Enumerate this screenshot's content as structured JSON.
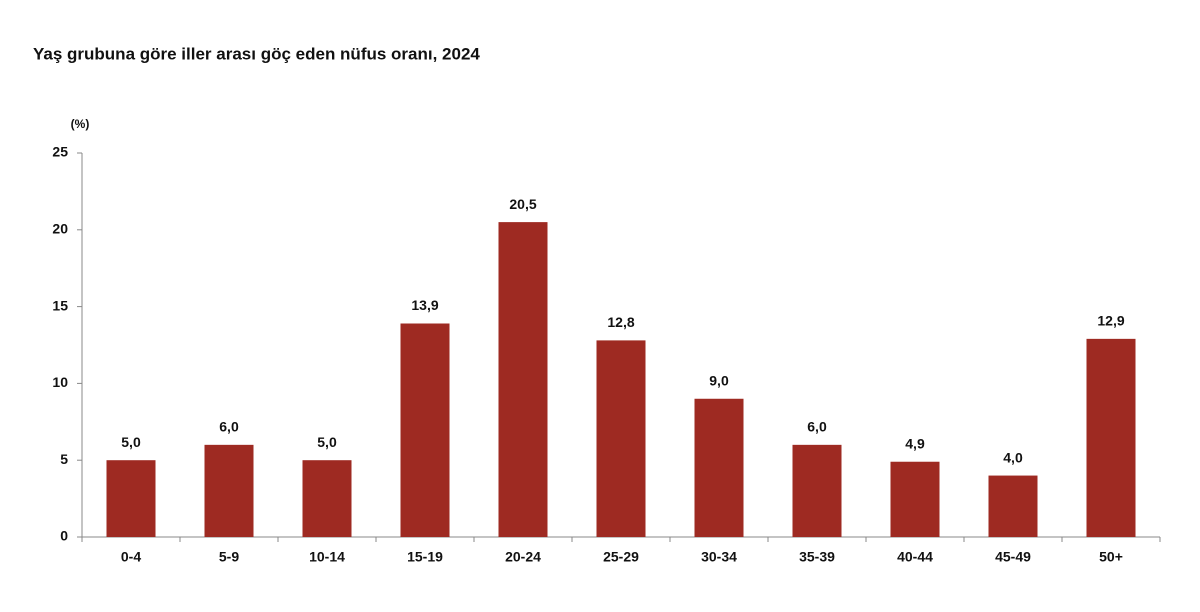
{
  "chart_data": {
    "type": "bar",
    "title": "Yaş grubuna göre iller arası göç eden nüfus oranı, 2024",
    "y_label": "(%)",
    "categories": [
      "0-4",
      "5-9",
      "10-14",
      "15-19",
      "20-24",
      "25-29",
      "30-34",
      "35-39",
      "40-44",
      "45-49",
      "50+"
    ],
    "values": [
      5.0,
      6.0,
      5.0,
      13.9,
      20.5,
      12.8,
      9.0,
      6.0,
      4.9,
      4.0,
      12.9
    ],
    "value_labels": [
      "5,0",
      "6,0",
      "5,0",
      "13,9",
      "20,5",
      "12,8",
      "9,0",
      "6,0",
      "4,9",
      "4,0",
      "12,9"
    ],
    "color": "#9e2a22",
    "ylim": [
      0,
      25
    ],
    "yticks": [
      0,
      5,
      10,
      15,
      20,
      25
    ],
    "grid": false
  }
}
